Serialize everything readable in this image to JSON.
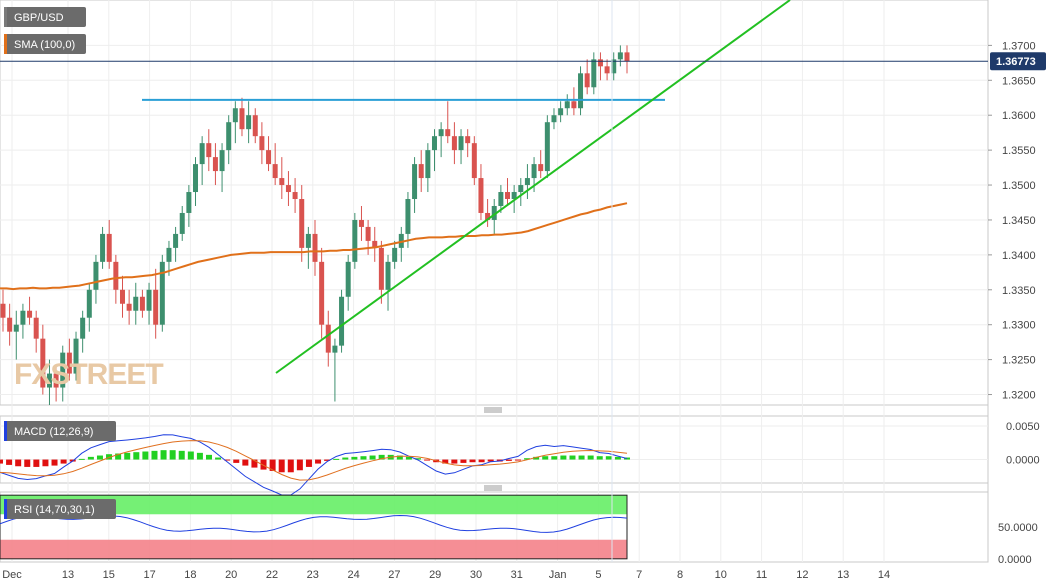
{
  "chart_data": {
    "type": "candlestick",
    "symbol": "GBP/USD",
    "sma_label": "SMA (100,0)",
    "current_price": "1.36773",
    "watermark": "FXSTREET",
    "main": {
      "ylim": [
        1.3185,
        1.3765
      ],
      "yticks": [
        "1.3700",
        "1.3650",
        "1.3600",
        "1.3550",
        "1.3500",
        "1.3450",
        "1.3400",
        "1.3350",
        "1.3300",
        "1.3250",
        "1.3200"
      ],
      "ytick_values": [
        1.37,
        1.365,
        1.36,
        1.355,
        1.35,
        1.345,
        1.34,
        1.335,
        1.33,
        1.325,
        1.32
      ],
      "candles": [
        [
          1.333,
          1.335,
          1.329,
          1.331
        ],
        [
          1.331,
          1.333,
          1.327,
          1.329
        ],
        [
          1.329,
          1.332,
          1.325,
          1.33
        ],
        [
          1.33,
          1.333,
          1.328,
          1.332
        ],
        [
          1.332,
          1.334,
          1.33,
          1.331
        ],
        [
          1.331,
          1.332,
          1.326,
          1.328
        ],
        [
          1.328,
          1.33,
          1.32,
          1.321
        ],
        [
          1.321,
          1.325,
          1.3185,
          1.323
        ],
        [
          1.323,
          1.324,
          1.319,
          1.321
        ],
        [
          1.321,
          1.327,
          1.319,
          1.326
        ],
        [
          1.326,
          1.328,
          1.322,
          1.323
        ],
        [
          1.323,
          1.329,
          1.322,
          1.328
        ],
        [
          1.328,
          1.332,
          1.326,
          1.331
        ],
        [
          1.331,
          1.336,
          1.329,
          1.335
        ],
        [
          1.335,
          1.34,
          1.333,
          1.339
        ],
        [
          1.339,
          1.344,
          1.338,
          1.343
        ],
        [
          1.343,
          1.345,
          1.338,
          1.339
        ],
        [
          1.339,
          1.34,
          1.333,
          1.335
        ],
        [
          1.335,
          1.337,
          1.331,
          1.333
        ],
        [
          1.333,
          1.335,
          1.33,
          1.332
        ],
        [
          1.332,
          1.336,
          1.33,
          1.334
        ],
        [
          1.334,
          1.335,
          1.331,
          1.332
        ],
        [
          1.332,
          1.336,
          1.33,
          1.335
        ],
        [
          1.335,
          1.338,
          1.328,
          1.33
        ],
        [
          1.33,
          1.34,
          1.329,
          1.339
        ],
        [
          1.339,
          1.342,
          1.337,
          1.341
        ],
        [
          1.341,
          1.344,
          1.339,
          1.343
        ],
        [
          1.343,
          1.347,
          1.342,
          1.346
        ],
        [
          1.346,
          1.35,
          1.344,
          1.349
        ],
        [
          1.349,
          1.354,
          1.347,
          1.353
        ],
        [
          1.353,
          1.357,
          1.35,
          1.356
        ],
        [
          1.356,
          1.358,
          1.352,
          1.354
        ],
        [
          1.354,
          1.356,
          1.35,
          1.352
        ],
        [
          1.352,
          1.356,
          1.349,
          1.355
        ],
        [
          1.355,
          1.36,
          1.353,
          1.359
        ],
        [
          1.359,
          1.362,
          1.356,
          1.361
        ],
        [
          1.361,
          1.3625,
          1.357,
          1.358
        ],
        [
          1.358,
          1.362,
          1.356,
          1.36
        ],
        [
          1.36,
          1.361,
          1.356,
          1.357
        ],
        [
          1.357,
          1.359,
          1.353,
          1.355
        ],
        [
          1.355,
          1.357,
          1.352,
          1.353
        ],
        [
          1.353,
          1.356,
          1.35,
          1.351
        ],
        [
          1.351,
          1.354,
          1.348,
          1.35
        ],
        [
          1.35,
          1.352,
          1.347,
          1.349
        ],
        [
          1.349,
          1.351,
          1.346,
          1.348
        ],
        [
          1.348,
          1.35,
          1.339,
          1.341
        ],
        [
          1.341,
          1.344,
          1.338,
          1.343
        ],
        [
          1.343,
          1.345,
          1.337,
          1.339
        ],
        [
          1.339,
          1.341,
          1.328,
          1.33
        ],
        [
          1.33,
          1.332,
          1.324,
          1.326
        ],
        [
          1.326,
          1.328,
          1.319,
          1.327
        ],
        [
          1.327,
          1.335,
          1.326,
          1.334
        ],
        [
          1.334,
          1.34,
          1.332,
          1.339
        ],
        [
          1.339,
          1.346,
          1.338,
          1.345
        ],
        [
          1.345,
          1.347,
          1.342,
          1.344
        ],
        [
          1.344,
          1.345,
          1.34,
          1.342
        ],
        [
          1.342,
          1.344,
          1.339,
          1.341
        ],
        [
          1.341,
          1.342,
          1.333,
          1.335
        ],
        [
          1.335,
          1.34,
          1.332,
          1.339
        ],
        [
          1.339,
          1.342,
          1.338,
          1.341
        ],
        [
          1.341,
          1.344,
          1.339,
          1.343
        ],
        [
          1.343,
          1.349,
          1.341,
          1.348
        ],
        [
          1.348,
          1.354,
          1.346,
          1.353
        ],
        [
          1.353,
          1.355,
          1.349,
          1.351
        ],
        [
          1.351,
          1.356,
          1.349,
          1.355
        ],
        [
          1.355,
          1.358,
          1.352,
          1.357
        ],
        [
          1.357,
          1.359,
          1.354,
          1.358
        ],
        [
          1.358,
          1.362,
          1.356,
          1.357
        ],
        [
          1.357,
          1.359,
          1.353,
          1.355
        ],
        [
          1.355,
          1.358,
          1.353,
          1.357
        ],
        [
          1.357,
          1.358,
          1.354,
          1.356
        ],
        [
          1.356,
          1.357,
          1.35,
          1.351
        ],
        [
          1.351,
          1.353,
          1.345,
          1.346
        ],
        [
          1.346,
          1.348,
          1.344,
          1.345
        ],
        [
          1.345,
          1.348,
          1.343,
          1.347
        ],
        [
          1.347,
          1.35,
          1.346,
          1.349
        ],
        [
          1.349,
          1.351,
          1.347,
          1.348
        ],
        [
          1.348,
          1.35,
          1.346,
          1.349
        ],
        [
          1.349,
          1.351,
          1.347,
          1.35
        ],
        [
          1.35,
          1.353,
          1.348,
          1.351
        ],
        [
          1.351,
          1.354,
          1.349,
          1.353
        ],
        [
          1.353,
          1.355,
          1.351,
          1.352
        ],
        [
          1.352,
          1.36,
          1.351,
          1.359
        ],
        [
          1.359,
          1.361,
          1.358,
          1.36
        ],
        [
          1.36,
          1.362,
          1.359,
          1.361
        ],
        [
          1.361,
          1.363,
          1.36,
          1.362
        ],
        [
          1.362,
          1.364,
          1.36,
          1.361
        ],
        [
          1.361,
          1.367,
          1.36,
          1.366
        ],
        [
          1.366,
          1.368,
          1.363,
          1.364
        ],
        [
          1.364,
          1.369,
          1.363,
          1.368
        ],
        [
          1.368,
          1.369,
          1.365,
          1.367
        ],
        [
          1.367,
          1.368,
          1.365,
          1.366
        ],
        [
          1.366,
          1.369,
          1.365,
          1.368
        ],
        [
          1.368,
          1.37,
          1.367,
          1.369
        ],
        [
          1.369,
          1.37,
          1.366,
          1.36773
        ]
      ],
      "sma": [
        1.3352,
        1.3352,
        1.3351,
        1.3352,
        1.3352,
        1.3353,
        1.3352,
        1.3352,
        1.3353,
        1.3353,
        1.3354,
        1.3355,
        1.3356,
        1.3358,
        1.336,
        1.3362,
        1.3364,
        1.3366,
        1.3367,
        1.3368,
        1.3368,
        1.3369,
        1.337,
        1.3371,
        1.3373,
        1.3375,
        1.3378,
        1.3381,
        1.3384,
        1.3387,
        1.339,
        1.3392,
        1.3394,
        1.3396,
        1.3398,
        1.34,
        1.3401,
        1.3402,
        1.3403,
        1.3403,
        1.3403,
        1.3404,
        1.3404,
        1.3404,
        1.3404,
        1.3404,
        1.3404,
        1.3405,
        1.3405,
        1.3405,
        1.3406,
        1.3406,
        1.3407,
        1.3407,
        1.3408,
        1.3409,
        1.341,
        1.3411,
        1.3413,
        1.3415,
        1.3417,
        1.3419,
        1.3421,
        1.3423,
        1.3424,
        1.3425,
        1.3425,
        1.3425,
        1.3426,
        1.3426,
        1.3427,
        1.3427,
        1.3427,
        1.3428,
        1.3428,
        1.3429,
        1.3429,
        1.343,
        1.3431,
        1.3432,
        1.3434,
        1.3437,
        1.344,
        1.3443,
        1.3446,
        1.3449,
        1.3452,
        1.3455,
        1.3458,
        1.346,
        1.3463,
        1.3465,
        1.3468,
        1.347,
        1.3472,
        1.3474
      ],
      "resistance": {
        "x": [
          0.2,
          0.67
        ],
        "y": [
          1.3622,
          1.3622
        ]
      },
      "trendline": {
        "x": [
          0.28,
          0.81
        ],
        "y": [
          1.3228,
          1.377
        ]
      }
    },
    "macd": {
      "label": "MACD (12,26,9)",
      "ylim": [
        -0.0035,
        0.0065
      ],
      "yticks": [
        "0.0050",
        "0.0000"
      ],
      "ytick_values": [
        0.005,
        0
      ],
      "hist_sample": [
        -0.0006,
        -0.0008,
        -0.001,
        -0.0011,
        -0.0011,
        -0.001,
        -0.0009,
        -0.0006,
        -0.0003,
        0.0001,
        0.0004,
        0.0006,
        0.0008,
        0.0009,
        0.001,
        0.0011,
        0.0012,
        0.0013,
        0.0014,
        0.0014,
        0.0013,
        0.0012,
        0.001,
        0.0007,
        0.0003,
        -0.0001,
        -0.0005,
        -0.0009,
        -0.0012,
        -0.0015,
        -0.0017,
        -0.0019,
        -0.0019,
        -0.0016,
        -0.0011,
        -0.0006,
        -0.0002,
        0.0001,
        0.0003,
        0.0004,
        0.0005,
        0.0006,
        0.0007,
        0.0007,
        0.0006,
        0.0004,
        0.0002,
        -0.0001,
        -0.0004,
        -0.0006,
        -0.0006,
        -0.0005,
        -0.0004,
        -0.0004,
        -0.0003,
        -0.0003,
        -0.0002,
        -0.0001,
        0.0002,
        0.0004,
        0.0005,
        0.0005,
        0.0006,
        0.0006,
        0.0006,
        0.0006,
        0.0005,
        0.0005,
        0.0004,
        0.0003
      ]
    },
    "rsi": {
      "label": "RSI (14,70,30,1)",
      "ylim": [
        -5,
        105
      ],
      "yticks": [
        "50.0000",
        "0.0000"
      ],
      "ytick_values": [
        50,
        0
      ],
      "overbought": 70,
      "oversold": 30
    },
    "xticks": [
      "Dec",
      "13",
      "15",
      "17",
      "18",
      "20",
      "22",
      "23",
      "24",
      "27",
      "29",
      "30",
      "31",
      "Jan",
      "5",
      "7",
      "8",
      "10",
      "11",
      "12",
      "13",
      "14"
    ]
  }
}
